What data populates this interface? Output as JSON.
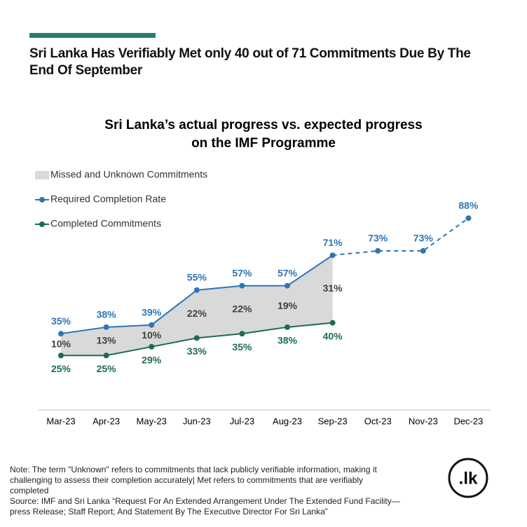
{
  "headline": "Sri Lanka Has Verifiably Met only 40 out of 71 Commitments Due By The End Of September",
  "chart_data": {
    "type": "line",
    "title": [
      "Sri Lanka’s actual progress vs. expected progress",
      "on the IMF Programme"
    ],
    "categories": [
      "Mar-23",
      "Apr-23",
      "May-23",
      "Jun-23",
      "Jul-23",
      "Aug-23",
      "Sep-23",
      "Oct-23",
      "Nov-23",
      "Dec-23"
    ],
    "ylim": [
      0,
      100
    ],
    "series": [
      {
        "name": "Missed and Unknown Commitments",
        "color": "#d9d9d9",
        "stacked_on": 2,
        "values": [
          10,
          13,
          10,
          22,
          22,
          19,
          31,
          null,
          null,
          null
        ],
        "value_labels": [
          "10%",
          "13%",
          "10%",
          "22%",
          "22%",
          "19%",
          "31%",
          null,
          null,
          null
        ]
      },
      {
        "name": "Required Completion Rate",
        "color": "#2e75b6",
        "dashed_from": 6,
        "values": [
          35,
          38,
          39,
          55,
          57,
          57,
          71,
          73,
          73,
          88
        ],
        "value_labels": [
          "35%",
          "38%",
          "39%",
          "55%",
          "57%",
          "57%",
          "71%",
          "73%",
          "73%",
          "88%"
        ]
      },
      {
        "name": "Completed Commitments",
        "color": "#1e6b52",
        "values": [
          25,
          25,
          29,
          33,
          35,
          38,
          40,
          null,
          null,
          null
        ],
        "value_labels": [
          "25%",
          "25%",
          "29%",
          "33%",
          "35%",
          "38%",
          "40%",
          null,
          null,
          null
        ]
      }
    ]
  },
  "note": "Note: The term \"Unknown\" refers to commitments that lack publicly verifiable information, making it challenging to assess their completion accurately| Met refers to commitments that are verifiably completed",
  "source": "Source: IMF and Sri Lanka “Request For An Extended Arrangement Under The Extended Fund Facility—press Release; Staff Report; And Statement By The Executive Director For Sri Lanka”",
  "logo": ".lk"
}
